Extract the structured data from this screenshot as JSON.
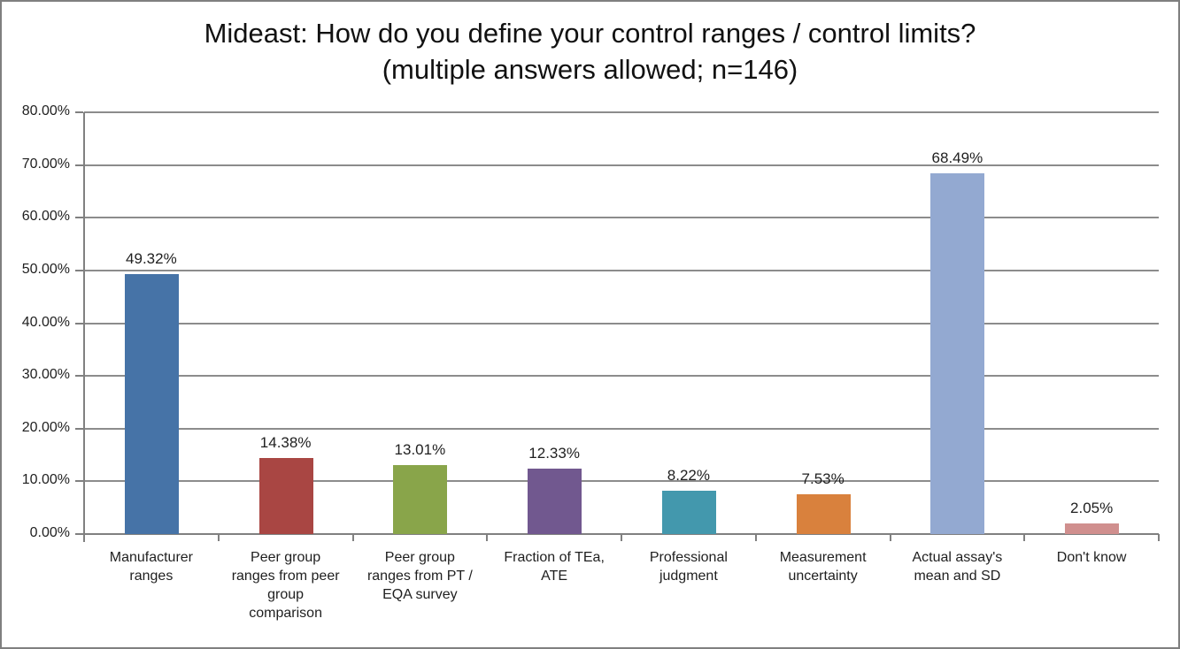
{
  "title": "Mideast: How do you define your control ranges / control limits? (multiple answers allowed; n=146)",
  "chart_data": {
    "type": "bar",
    "title": "Mideast: How do you define your control ranges / control limits? (multiple answers allowed; n=146)",
    "categories": [
      "Manufacturer ranges",
      "Peer group ranges from peer group comparison",
      "Peer group ranges from PT / EQA survey",
      "Fraction of TEa, ATE",
      "Professional judgment",
      "Measurement uncertainty",
      "Actual assay's mean and SD",
      "Don't know"
    ],
    "category_lines": [
      [
        "Manufacturer",
        "ranges"
      ],
      [
        "Peer group",
        "ranges from peer",
        "group",
        "comparison"
      ],
      [
        "Peer group",
        "ranges from PT /",
        "EQA survey"
      ],
      [
        "Fraction of TEa,",
        "ATE"
      ],
      [
        "Professional",
        "judgment"
      ],
      [
        "Measurement",
        "uncertainty"
      ],
      [
        "Actual assay's",
        "mean and SD"
      ],
      [
        "Don't know"
      ]
    ],
    "values": [
      49.32,
      14.38,
      13.01,
      12.33,
      8.22,
      7.53,
      68.49,
      2.05
    ],
    "value_labels": [
      "49.32%",
      "14.38%",
      "13.01%",
      "12.33%",
      "8.22%",
      "7.53%",
      "68.49%",
      "2.05%"
    ],
    "bar_colors": [
      "#4673A7",
      "#A94643",
      "#89A54A",
      "#71588F",
      "#4398AD",
      "#D9813D",
      "#93A9D1",
      "#D08F8E"
    ],
    "ytick_labels": [
      "0.00%",
      "10.00%",
      "20.00%",
      "30.00%",
      "40.00%",
      "50.00%",
      "60.00%",
      "70.00%",
      "80.00%"
    ],
    "ylim": [
      0,
      80
    ],
    "ytick_step": 10,
    "xlabel": "",
    "ylabel": "",
    "grid": true,
    "legend": "none",
    "gridline_color": "#8c8c8c",
    "axis_color": "#808080",
    "text_color": "#1f1f1f"
  }
}
